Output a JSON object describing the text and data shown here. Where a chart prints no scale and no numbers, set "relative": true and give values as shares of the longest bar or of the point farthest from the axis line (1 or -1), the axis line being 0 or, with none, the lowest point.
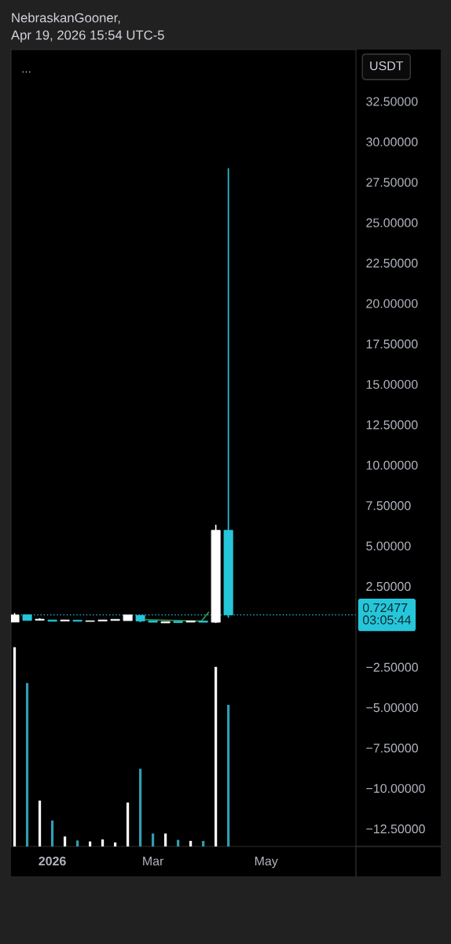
{
  "chart_data": [
    {
      "type": "candlestick",
      "title": "NebraskanGooner,",
      "subtitle": "Apr 19, 2026 15:54 UTC-5",
      "ylabel": "USDT",
      "annotations": [
        "..."
      ],
      "x": [
        "2025-12-15",
        "2025-12-22",
        "2025-12-29",
        "2026-01-05",
        "2026-01-12",
        "2026-01-19",
        "2026-01-26",
        "2026-02-02",
        "2026-02-09",
        "2026-02-16",
        "2026-02-23",
        "2026-03-02",
        "2026-03-09",
        "2026-03-16",
        "2026-03-23",
        "2026-03-30",
        "2026-04-06",
        "2026-04-13"
      ],
      "ohlc": [
        [
          0.28,
          0.84,
          0.28,
          0.72
        ],
        [
          0.74,
          0.74,
          0.38,
          0.38
        ],
        [
          0.4,
          0.52,
          0.4,
          0.46
        ],
        [
          0.41,
          0.41,
          0.33,
          0.33
        ],
        [
          0.35,
          0.41,
          0.35,
          0.41
        ],
        [
          0.4,
          0.4,
          0.33,
          0.33
        ],
        [
          0.32,
          0.36,
          0.32,
          0.36
        ],
        [
          0.35,
          0.41,
          0.35,
          0.41
        ],
        [
          0.38,
          0.45,
          0.38,
          0.45
        ],
        [
          0.37,
          0.72,
          0.37,
          0.72
        ],
        [
          0.7,
          0.7,
          0.27,
          0.35
        ],
        [
          0.36,
          0.36,
          0.27,
          0.27
        ],
        [
          0.23,
          0.31,
          0.23,
          0.31
        ],
        [
          0.33,
          0.33,
          0.25,
          0.25
        ],
        [
          0.28,
          0.35,
          0.28,
          0.35
        ],
        [
          0.35,
          0.35,
          0.27,
          0.27
        ],
        [
          0.27,
          6.3,
          0.23,
          5.96
        ],
        [
          5.96,
          28.35,
          0.55,
          0.72477
        ]
      ],
      "colors": [
        "#ffffff",
        "#26c6da",
        "#ffffff",
        "#26c6da",
        "#ffffff",
        "#26c6da",
        "#ffffff",
        "#ffffff",
        "#ffffff",
        "#ffffff",
        "#26c6da",
        "#26c6da",
        "#ffffff",
        "#26c6da",
        "#ffffff",
        "#26c6da",
        "#ffffff",
        "#26c6da"
      ],
      "series": [
        {
          "type": "line",
          "color": "#2e9e48",
          "x": [
            "2026-02-26",
            "2026-03-29",
            "2026-04-02"
          ],
          "values": [
            0.43,
            0.34,
            0.89
          ]
        }
      ],
      "xlim": [
        "2025-12-13",
        "2026-06-23"
      ],
      "xticks": [
        {
          "value": "2026-01-05",
          "label": "2026"
        },
        {
          "value": "2026-03-02",
          "label": "Mar"
        },
        {
          "value": "2026-05-04",
          "label": "May"
        }
      ],
      "ylim": [
        -13.6,
        35.7
      ],
      "yticks": [
        {
          "value": 32.5,
          "label": "32.50000"
        },
        {
          "value": 30,
          "label": "30.00000"
        },
        {
          "value": 27.5,
          "label": "27.50000"
        },
        {
          "value": 25,
          "label": "25.00000"
        },
        {
          "value": 22.5,
          "label": "22.50000"
        },
        {
          "value": 20,
          "label": "20.00000"
        },
        {
          "value": 17.5,
          "label": "17.50000"
        },
        {
          "value": 15,
          "label": "15.00000"
        },
        {
          "value": 12.5,
          "label": "12.50000"
        },
        {
          "value": 10,
          "label": "10.00000"
        },
        {
          "value": 7.5,
          "label": "7.50000"
        },
        {
          "value": 5,
          "label": "5.00000"
        },
        {
          "value": 2.5,
          "label": "2.50000"
        },
        {
          "value": -2.5,
          "label": "−2.50000"
        },
        {
          "value": -5,
          "label": "−5.00000"
        },
        {
          "value": -7.5,
          "label": "−7.50000"
        },
        {
          "value": -10,
          "label": "−10.00000"
        },
        {
          "value": -12.5,
          "label": "−12.50000"
        }
      ],
      "ref_lines": [
        {
          "axis": "y",
          "value": 0.72477,
          "label": "0.72477\n03:05:44",
          "color": "#26c6da",
          "line_style": "dotted"
        }
      ]
    },
    {
      "type": "bar",
      "relative": true,
      "tick_labels": false,
      "x": [
        "2025-12-15",
        "2025-12-22",
        "2025-12-29",
        "2026-01-05",
        "2026-01-12",
        "2026-01-19",
        "2026-01-26",
        "2026-02-02",
        "2026-02-09",
        "2026-02-16",
        "2026-02-23",
        "2026-03-02",
        "2026-03-09",
        "2026-03-16",
        "2026-03-23",
        "2026-03-30",
        "2026-04-06",
        "2026-04-13"
      ],
      "values": [
        1,
        0.82,
        0.23,
        0.13,
        0.05,
        0.03,
        0.025,
        0.035,
        0.02,
        0.22,
        0.39,
        0.065,
        0.065,
        0.033,
        0.028,
        0.028,
        0.9,
        0.71
      ],
      "colors": [
        "#ffffff",
        "#2f9fb0",
        "#ffffff",
        "#2f9fb0",
        "#ffffff",
        "#2f9fb0",
        "#ffffff",
        "#ffffff",
        "#ffffff",
        "#ffffff",
        "#2f9fb0",
        "#2f9fb0",
        "#ffffff",
        "#2f9fb0",
        "#ffffff",
        "#2f9fb0",
        "#ffffff",
        "#2f9fb0"
      ],
      "xlim": [
        "2025-12-13",
        "2026-06-23"
      ]
    }
  ]
}
